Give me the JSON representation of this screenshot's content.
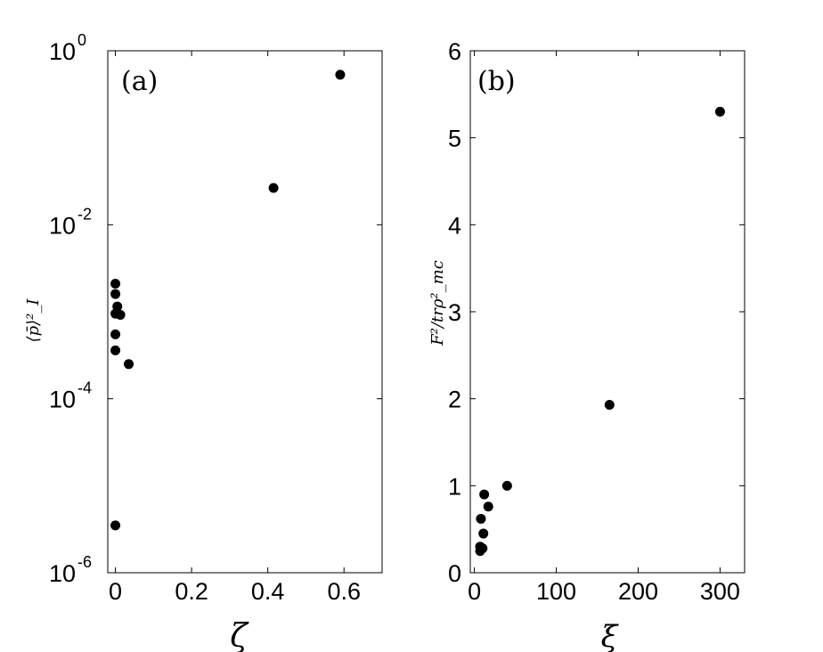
{
  "chart_data": [
    {
      "type": "scatter",
      "panel_label": "(a)",
      "xlabel": "ζ",
      "ylabel": "⟨p̄⟩²_I",
      "yscale": "log",
      "xlim": [
        -0.02,
        0.7
      ],
      "ylim_exp": [
        -6,
        0
      ],
      "x_ticks": [
        "0",
        "0.2",
        "0.4",
        "0.6"
      ],
      "x_tick_values": [
        0,
        0.2,
        0.4,
        0.6
      ],
      "y_tick_exponents": [
        0,
        -2,
        -4,
        -6
      ],
      "y_tick_base": "10",
      "y_tick_sups": [
        "0",
        "-2",
        "-4",
        "-6"
      ],
      "points": [
        {
          "x": 0.0,
          "y": 0.0021
        },
        {
          "x": 0.0,
          "y": 0.0016
        },
        {
          "x": 0.0,
          "y": 0.00095
        },
        {
          "x": 0.0,
          "y": 0.00055
        },
        {
          "x": 0.0,
          "y": 0.00036
        },
        {
          "x": 0.0,
          "y": 3.5e-06
        },
        {
          "x": 0.005,
          "y": 0.00115
        },
        {
          "x": 0.013,
          "y": 0.00092
        },
        {
          "x": 0.035,
          "y": 0.00025
        },
        {
          "x": 0.415,
          "y": 0.0265
        },
        {
          "x": 0.59,
          "y": 0.53
        }
      ]
    },
    {
      "type": "scatter",
      "panel_label": "(b)",
      "xlabel": "ξ",
      "ylabel": "F²/trρ²_mc",
      "xlim": [
        -5,
        330
      ],
      "ylim": [
        0,
        6
      ],
      "x_ticks": [
        "0",
        "100",
        "200",
        "300"
      ],
      "x_tick_values": [
        0,
        100,
        200,
        300
      ],
      "y_ticks": [
        "0",
        "1",
        "2",
        "3",
        "4",
        "5",
        "6"
      ],
      "y_tick_values": [
        0,
        1,
        2,
        3,
        4,
        5,
        6
      ],
      "points": [
        {
          "x": 7,
          "y": 0.3
        },
        {
          "x": 7,
          "y": 0.25
        },
        {
          "x": 8,
          "y": 0.62
        },
        {
          "x": 10,
          "y": 0.28
        },
        {
          "x": 11,
          "y": 0.45
        },
        {
          "x": 12,
          "y": 0.9
        },
        {
          "x": 17,
          "y": 0.76
        },
        {
          "x": 40,
          "y": 1.0
        },
        {
          "x": 165,
          "y": 1.93
        },
        {
          "x": 300,
          "y": 5.3
        }
      ]
    }
  ]
}
